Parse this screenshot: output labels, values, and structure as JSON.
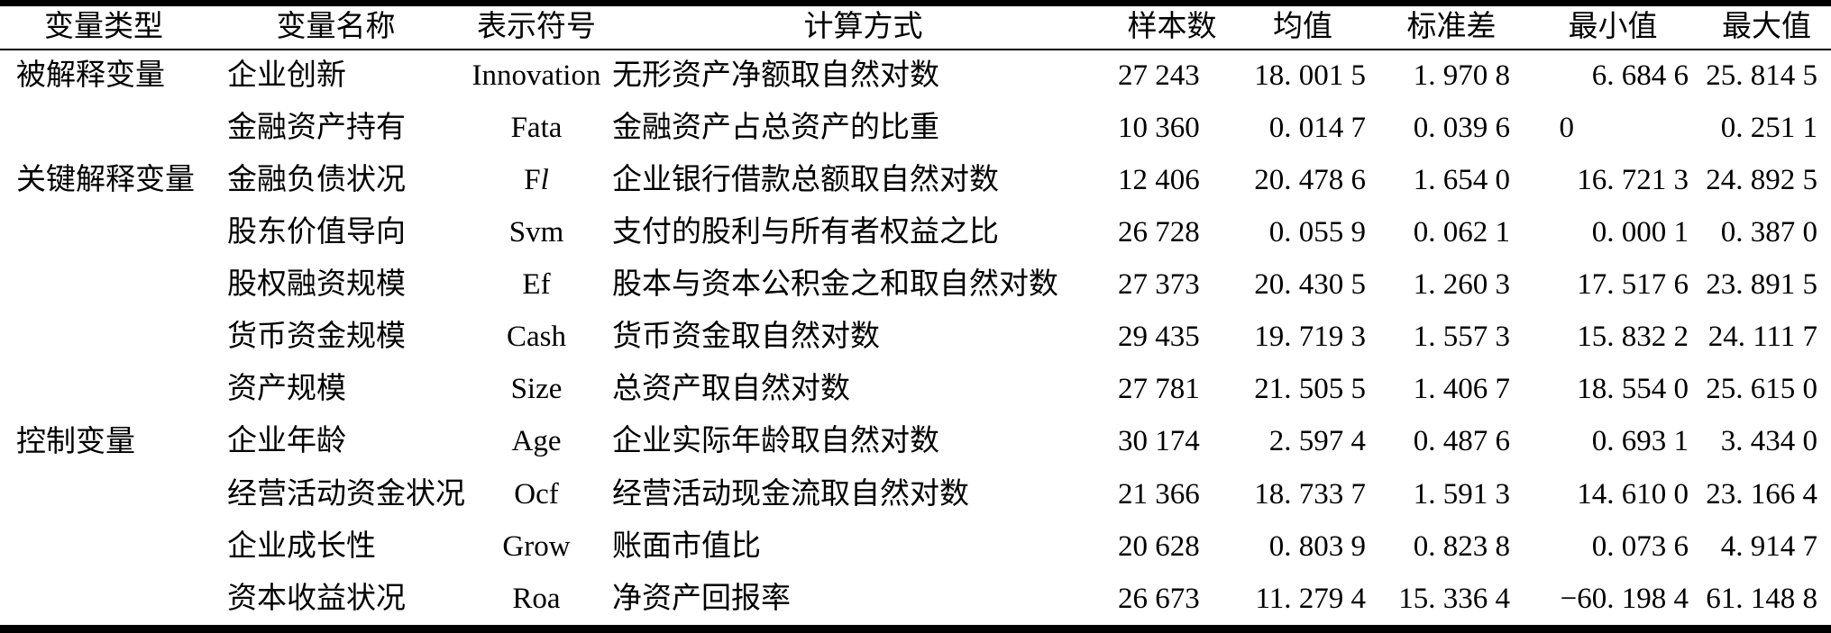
{
  "header": {
    "columns": [
      "变量类型",
      "变量名称",
      "表示符号",
      "计算方式",
      "样本数",
      "均值",
      "标准差",
      "最小值",
      "最大值"
    ]
  },
  "groups": [
    {
      "type": "被解释变量",
      "rows": [
        {
          "name": "企业创新",
          "symbol": "Innovation",
          "symbol_italic": "",
          "method": "无形资产净额取自然对数",
          "n": "27 243",
          "mean": "18. 001 5",
          "sd": "1. 970 8",
          "min": "6. 684 6",
          "max": "25. 814 5"
        }
      ]
    },
    {
      "type": "关键解释变量",
      "rows": [
        {
          "name": "金融资产持有",
          "symbol": "Fata",
          "symbol_italic": "",
          "method": "金融资产占总资产的比重",
          "n": "10 360",
          "mean": "0. 014 7",
          "sd": "0. 039 6",
          "min": "0",
          "max": "0. 251 1"
        },
        {
          "name": "金融负债状况",
          "symbol": "F",
          "symbol_italic": "l",
          "method": "企业银行借款总额取自然对数",
          "n": "12 406",
          "mean": "20. 478 6",
          "sd": "1. 654 0",
          "min": "16. 721 3",
          "max": "24. 892 5"
        },
        {
          "name": "股东价值导向",
          "symbol": "Svm",
          "symbol_italic": "",
          "method": "支付的股利与所有者权益之比",
          "n": "26 728",
          "mean": "0. 055 9",
          "sd": "0. 062 1",
          "min": "0. 000 1",
          "max": "0. 387 0"
        }
      ]
    },
    {
      "type": "控制变量",
      "rows": [
        {
          "name": "股权融资规模",
          "symbol": "Ef",
          "symbol_italic": "",
          "method": "股本与资本公积金之和取自然对数",
          "n": "27 373",
          "mean": "20. 430 5",
          "sd": "1. 260 3",
          "min": "17. 517 6",
          "max": "23. 891 5"
        },
        {
          "name": "货币资金规模",
          "symbol": "Cash",
          "symbol_italic": "",
          "method": "货币资金取自然对数",
          "n": "29 435",
          "mean": "19. 719 3",
          "sd": "1. 557 3",
          "min": "15. 832 2",
          "max": "24. 111 7"
        },
        {
          "name": "资产规模",
          "symbol": "Size",
          "symbol_italic": "",
          "method": "总资产取自然对数",
          "n": "27 781",
          "mean": "21. 505 5",
          "sd": "1. 406 7",
          "min": "18. 554 0",
          "max": "25. 615 0"
        },
        {
          "name": "企业年龄",
          "symbol": "Age",
          "symbol_italic": "",
          "method": "企业实际年龄取自然对数",
          "n": "30 174",
          "mean": "2. 597 4",
          "sd": "0. 487 6",
          "min": "0. 693 1",
          "max": "3. 434 0"
        },
        {
          "name": "经营活动资金状况",
          "symbol": "Ocf",
          "symbol_italic": "",
          "method": "经营活动现金流取自然对数",
          "n": "21 366",
          "mean": "18. 733 7",
          "sd": "1. 591 3",
          "min": "14. 610 0",
          "max": "23. 166 4"
        },
        {
          "name": "企业成长性",
          "symbol": "Grow",
          "symbol_italic": "",
          "method": "账面市值比",
          "n": "20 628",
          "mean": "0. 803 9",
          "sd": "0. 823 8",
          "min": "0. 073 6",
          "max": "4. 914 7"
        },
        {
          "name": "资本收益状况",
          "symbol": "Roa",
          "symbol_italic": "",
          "method": "净资产回报率",
          "n": "26 673",
          "mean": "11. 279 4",
          "sd": "15. 336 4",
          "min": "−60. 198 4",
          "max": "61. 148 8"
        }
      ]
    }
  ]
}
